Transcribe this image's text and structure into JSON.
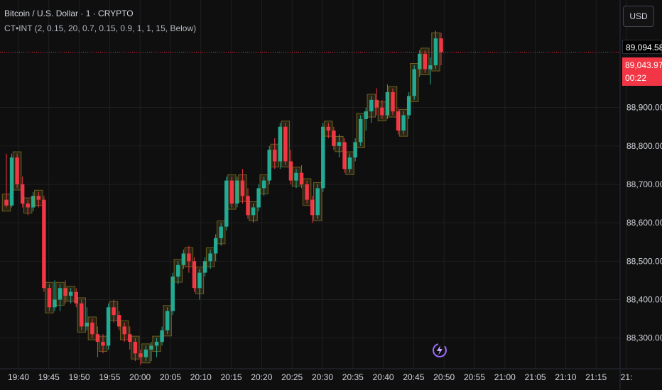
{
  "header": {
    "symbol": "Bitcoin / U.S. Dollar · 1 · CRYPTO",
    "indicator": "CT•INT (2, 0.15, 20, 0.7, 0.15, 0.9, 1, 1, 15, Below)"
  },
  "currency": "USD",
  "tags": {
    "high": "89,094.58",
    "last": "89,043.97",
    "countdown": "00:22"
  },
  "colors": {
    "up": "#22ab94",
    "down": "#f23645",
    "box": "#a08b2a",
    "grid": "#1f1f1f",
    "bg": "#0f0f0f"
  },
  "chart_data": {
    "type": "candlestick",
    "title": "",
    "ylim": [
      88220,
      89180
    ],
    "yticks": [
      "88,300.00",
      "88,400.00",
      "88,500.00",
      "88,600.00",
      "88,700.00",
      "88,800.00",
      "88,900.00"
    ],
    "xticks": [
      "19:40",
      "19:45",
      "19:50",
      "19:55",
      "20:00",
      "20:05",
      "20:10",
      "20:15",
      "20:20",
      "20:25",
      "20:30",
      "20:35",
      "20:40",
      "20:45",
      "20:50",
      "20:55",
      "21:00",
      "21:05",
      "21:10",
      "21:15",
      "21:"
    ],
    "last_price": 89043.97,
    "candles": [
      [
        88660,
        88780,
        88640,
        88645
      ],
      [
        88645,
        88780,
        88640,
        88770
      ],
      [
        88770,
        88780,
        88690,
        88700
      ],
      [
        88700,
        88720,
        88640,
        88650
      ],
      [
        88650,
        88660,
        88620,
        88640
      ],
      [
        88640,
        88680,
        88630,
        88670
      ],
      [
        88670,
        88680,
        88640,
        88660
      ],
      [
        88660,
        88670,
        88420,
        88430
      ],
      [
        88430,
        88440,
        88370,
        88380
      ],
      [
        88380,
        88450,
        88370,
        88400
      ],
      [
        88400,
        88440,
        88370,
        88430
      ],
      [
        88430,
        88450,
        88390,
        88410
      ],
      [
        88410,
        88430,
        88390,
        88420
      ],
      [
        88420,
        88430,
        88380,
        88390
      ],
      [
        88390,
        88400,
        88320,
        88330
      ],
      [
        88330,
        88380,
        88320,
        88340
      ],
      [
        88340,
        88350,
        88300,
        88310
      ],
      [
        88310,
        88330,
        88250,
        88290
      ],
      [
        88290,
        88310,
        88260,
        88280
      ],
      [
        88280,
        88390,
        88270,
        88380
      ],
      [
        88380,
        88400,
        88340,
        88360
      ],
      [
        88360,
        88370,
        88320,
        88330
      ],
      [
        88330,
        88340,
        88290,
        88310
      ],
      [
        88310,
        88330,
        88270,
        88290
      ],
      [
        88290,
        88300,
        88240,
        88260
      ],
      [
        88260,
        88270,
        88230,
        88250
      ],
      [
        88250,
        88280,
        88240,
        88270
      ],
      [
        88270,
        88290,
        88240,
        88280
      ],
      [
        88280,
        88300,
        88250,
        88290
      ],
      [
        88290,
        88330,
        88280,
        88320
      ],
      [
        88320,
        88380,
        88310,
        88370
      ],
      [
        88370,
        88470,
        88360,
        88460
      ],
      [
        88460,
        88500,
        88440,
        88490
      ],
      [
        88490,
        88530,
        88480,
        88520
      ],
      [
        88520,
        88540,
        88470,
        88500
      ],
      [
        88500,
        88510,
        88420,
        88430
      ],
      [
        88430,
        88480,
        88400,
        88470
      ],
      [
        88470,
        88510,
        88460,
        88500
      ],
      [
        88500,
        88530,
        88480,
        88520
      ],
      [
        88520,
        88570,
        88500,
        88560
      ],
      [
        88560,
        88600,
        88540,
        88590
      ],
      [
        88590,
        88720,
        88580,
        88710
      ],
      [
        88710,
        88720,
        88640,
        88650
      ],
      [
        88650,
        88720,
        88640,
        88710
      ],
      [
        88710,
        88740,
        88650,
        88670
      ],
      [
        88670,
        88690,
        88610,
        88620
      ],
      [
        88620,
        88650,
        88600,
        88640
      ],
      [
        88640,
        88700,
        88630,
        88690
      ],
      [
        88690,
        88720,
        88670,
        88710
      ],
      [
        88710,
        88800,
        88700,
        88790
      ],
      [
        88790,
        88820,
        88740,
        88760
      ],
      [
        88760,
        88860,
        88740,
        88850
      ],
      [
        88850,
        88860,
        88750,
        88760
      ],
      [
        88760,
        88790,
        88700,
        88710
      ],
      [
        88710,
        88740,
        88690,
        88730
      ],
      [
        88730,
        88750,
        88690,
        88700
      ],
      [
        88700,
        88710,
        88650,
        88660
      ],
      [
        88660,
        88670,
        88600,
        88620
      ],
      [
        88620,
        88700,
        88610,
        88690
      ],
      [
        88690,
        88860,
        88680,
        88850
      ],
      [
        88850,
        88860,
        88820,
        88840
      ],
      [
        88840,
        88850,
        88790,
        88800
      ],
      [
        88800,
        88830,
        88770,
        88810
      ],
      [
        88810,
        88820,
        88730,
        88740
      ],
      [
        88740,
        88780,
        88730,
        88770
      ],
      [
        88770,
        88820,
        88760,
        88810
      ],
      [
        88810,
        88880,
        88800,
        88870
      ],
      [
        88870,
        88900,
        88840,
        88890
      ],
      [
        88890,
        88930,
        88860,
        88920
      ],
      [
        88920,
        88950,
        88880,
        88900
      ],
      [
        88900,
        88920,
        88870,
        88880
      ],
      [
        88880,
        88960,
        88870,
        88940
      ],
      [
        88940,
        88950,
        88880,
        88890
      ],
      [
        88890,
        88900,
        88830,
        88840
      ],
      [
        88840,
        88890,
        88830,
        88880
      ],
      [
        88880,
        88940,
        88870,
        88930
      ],
      [
        88930,
        89010,
        88920,
        89000
      ],
      [
        89000,
        89050,
        88980,
        89040
      ],
      [
        89040,
        89050,
        88990,
        89000
      ],
      [
        89000,
        89030,
        88960,
        89010
      ],
      [
        89010,
        89100,
        89000,
        89080
      ],
      [
        89080,
        89095,
        89010,
        89044
      ]
    ]
  }
}
